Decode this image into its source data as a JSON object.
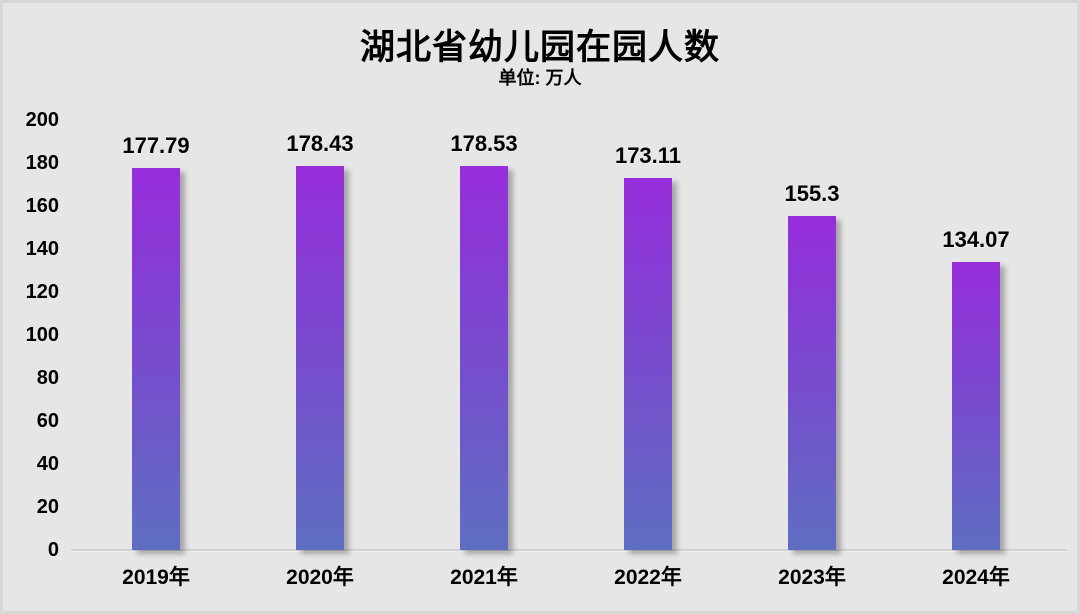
{
  "header": {
    "title": "湖北省幼儿园在园人数",
    "subtitle": "单位: 万人"
  },
  "chart_data": {
    "type": "bar",
    "title": "湖北省幼儿园在园人数",
    "subtitle": "单位: 万人",
    "unit": "万人",
    "categories": [
      "2019年",
      "2020年",
      "2021年",
      "2022年",
      "2023年",
      "2024年"
    ],
    "values": [
      177.79,
      178.43,
      178.53,
      173.11,
      155.3,
      134.07
    ],
    "data_labels": [
      "177.79",
      "178.43",
      "178.53",
      "173.11",
      "155.3",
      "134.07"
    ],
    "xlabel": "",
    "ylabel": "",
    "ylim": [
      0,
      200
    ],
    "ytick_step": 20,
    "yticks": [
      0,
      20,
      40,
      60,
      80,
      100,
      120,
      140,
      160,
      180,
      200
    ],
    "grid": false,
    "legend_position": "none",
    "colors": {
      "background": "#e6e6e6",
      "bar_gradient_top": "#962ddb",
      "bar_gradient_bottom": "#5e6ec1",
      "axis_line": "#d2d2d2",
      "text": "#000000"
    }
  }
}
